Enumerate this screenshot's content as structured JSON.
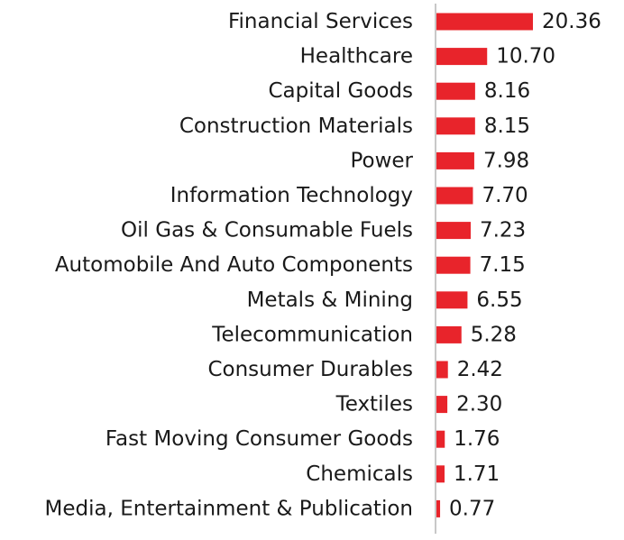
{
  "chart_data": {
    "type": "bar",
    "orientation": "horizontal",
    "categories": [
      "Financial Services",
      "Healthcare",
      "Capital Goods",
      "Construction Materials",
      "Power",
      "Information Technology",
      "Oil Gas & Consumable Fuels",
      "Automobile And Auto Components",
      "Metals & Mining",
      "Telecommunication",
      "Consumer Durables",
      "Textiles",
      "Fast Moving Consumer Goods",
      "Chemicals",
      "Media, Entertainment & Publication"
    ],
    "values": [
      20.36,
      10.7,
      8.16,
      8.15,
      7.98,
      7.7,
      7.23,
      7.15,
      6.55,
      5.28,
      2.42,
      2.3,
      1.76,
      1.71,
      0.77
    ],
    "value_labels": [
      "20.36",
      "10.70",
      "8.16",
      "8.15",
      "7.98",
      "7.70",
      "7.23",
      "7.15",
      "6.55",
      "5.28",
      "2.42",
      "2.30",
      "1.76",
      "1.71",
      "0.77"
    ],
    "title": "",
    "xlabel": "",
    "ylabel": "",
    "xlim": [
      0,
      20.36
    ],
    "grid": false,
    "legend": "none",
    "bar_color": "#e8242b",
    "axis_color": "#c8c8c8",
    "text_color": "#1a1a1a"
  }
}
